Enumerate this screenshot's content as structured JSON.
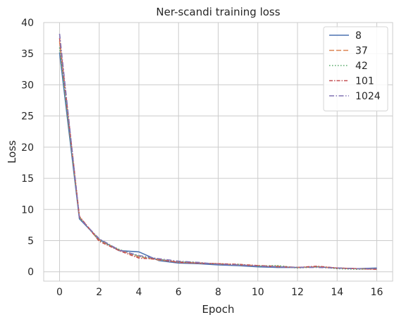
{
  "chart_data": {
    "type": "line",
    "title": "Ner-scandi training loss",
    "xlabel": "Epoch",
    "ylabel": "Loss",
    "xlim": [
      -0.8,
      16.8
    ],
    "ylim": [
      -1.5,
      40
    ],
    "xticks": [
      0,
      2,
      4,
      6,
      8,
      10,
      12,
      14,
      16
    ],
    "yticks": [
      0,
      5,
      10,
      15,
      20,
      25,
      30,
      35,
      40
    ],
    "grid": true,
    "legend_position": "top-right",
    "x": [
      0,
      1,
      2,
      3,
      4,
      5,
      6,
      7,
      8,
      9,
      10,
      11,
      12,
      13,
      14,
      15,
      16
    ],
    "series": [
      {
        "name": "8",
        "color": "#4c72b0",
        "dash": "solid",
        "values": [
          35.2,
          8.5,
          5.2,
          3.4,
          3.2,
          1.8,
          1.4,
          1.3,
          1.1,
          1.0,
          0.8,
          0.7,
          0.7,
          0.8,
          0.6,
          0.5,
          0.6
        ]
      },
      {
        "name": "37",
        "color": "#dd8452",
        "dash": "dashed",
        "values": [
          37.0,
          8.8,
          5.1,
          3.5,
          2.4,
          1.9,
          1.6,
          1.4,
          1.3,
          1.1,
          1.0,
          0.9,
          0.7,
          0.8,
          0.6,
          0.5,
          0.4
        ]
      },
      {
        "name": "42",
        "color": "#55a868",
        "dash": "dotted",
        "values": [
          36.0,
          8.7,
          5.0,
          3.6,
          2.5,
          2.0,
          1.6,
          1.5,
          1.2,
          1.2,
          0.9,
          1.0,
          0.6,
          0.8,
          0.5,
          0.4,
          0.5
        ]
      },
      {
        "name": "101",
        "color": "#c44e52",
        "dash": "dashdot",
        "values": [
          37.5,
          8.9,
          4.9,
          3.4,
          2.2,
          2.0,
          1.5,
          1.4,
          1.3,
          1.2,
          1.0,
          0.8,
          0.7,
          0.9,
          0.6,
          0.5,
          0.4
        ]
      },
      {
        "name": "1024",
        "color": "#8172b3",
        "dash": "dashdot2",
        "values": [
          38.2,
          8.6,
          5.3,
          3.5,
          2.6,
          2.1,
          1.7,
          1.5,
          1.2,
          1.1,
          0.9,
          0.8,
          0.7,
          0.7,
          0.6,
          0.5,
          0.5
        ]
      }
    ]
  }
}
